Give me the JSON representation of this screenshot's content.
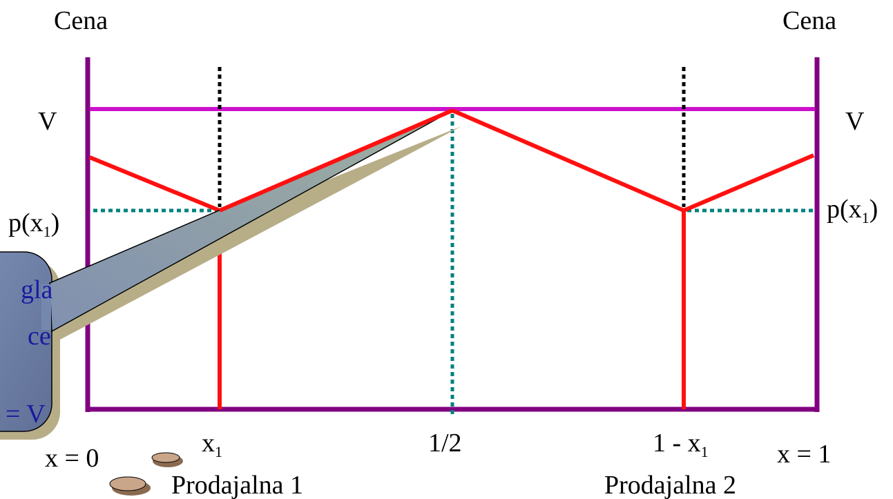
{
  "labels": {
    "left_axis": "Cena",
    "right_axis": "Cena",
    "left_v": "V",
    "right_v": "V",
    "left_price": {
      "main": "p(x",
      "sub": "1",
      "close": ")"
    },
    "right_price": {
      "main": "p(x",
      "sub": "1",
      "close": ")"
    },
    "x_start": "x = 0",
    "x1": {
      "main": "x",
      "sub": "1"
    },
    "half": "1/2",
    "one_minus_x1": {
      "main": "1 - x",
      "sub": "1"
    },
    "x_end": "x = 1",
    "store_1": "Prodajalna 1",
    "store_2": "Prodajalna 2"
  },
  "callout": {
    "lines": [
      "gla",
      "ce",
      "= V"
    ]
  }
}
